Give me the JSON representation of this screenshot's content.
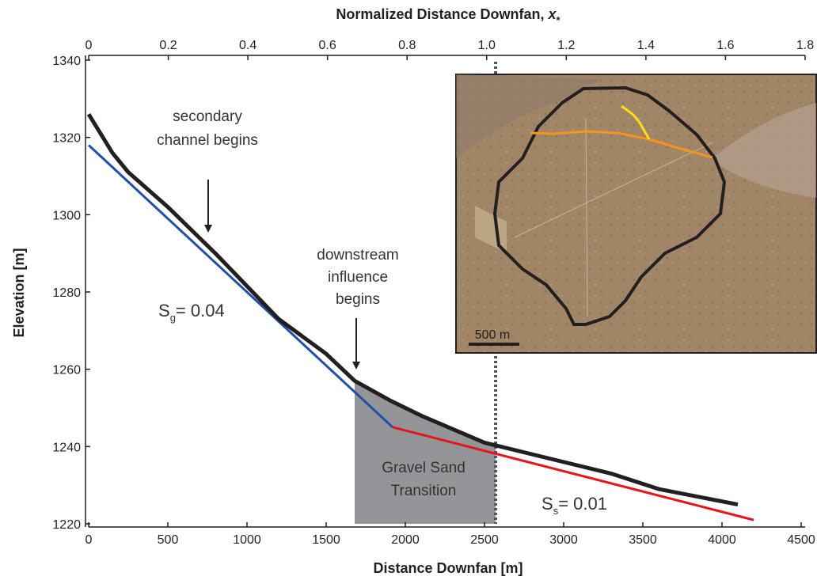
{
  "chart_data": {
    "type": "line",
    "top_axis_label": "Normalized Distance Downfan, ",
    "top_axis_var": "x",
    "top_axis_sub": "*",
    "x_label": "Distance Downfan [m]",
    "y_label": "Elevation [m]",
    "xlim": [
      0,
      4500
    ],
    "xticks": [
      0,
      500,
      1000,
      1500,
      2000,
      2500,
      3000,
      3500,
      4000,
      4500
    ],
    "top_xlim": [
      0,
      1.8
    ],
    "top_xticks": [
      0,
      0.2,
      0.4,
      0.6,
      0.8,
      {
        "value": 1,
        "label": "1.0"
      },
      1.2,
      1.4,
      1.6,
      1.8
    ],
    "ylim": [
      1220,
      1340
    ],
    "yticks": [
      1220,
      1240,
      1260,
      1280,
      1300,
      1320,
      1340
    ],
    "series": [
      {
        "color": "#231f20",
        "x": [
          0,
          150,
          250,
          500,
          800,
          1200,
          1500,
          1680,
          1900,
          2100,
          2500,
          2600,
          3000,
          3300,
          3600,
          4100
        ],
        "values": [
          1326,
          1316,
          1311,
          1302,
          1290,
          1273,
          1264,
          1257,
          1252,
          1248,
          1241,
          1240,
          1236,
          1233,
          1229,
          1225
        ]
      },
      {
        "color": "#1f4fa8",
        "x": [
          0,
          1920
        ],
        "values": [
          1318,
          1245
        ]
      },
      {
        "color": "#e8141b",
        "x": [
          1920,
          4200
        ],
        "values": [
          1245,
          1221
        ]
      }
    ],
    "transition_x": [
      1680,
      2570
    ],
    "transition_color": "#939598",
    "reference_line_x": 2570,
    "annotations": {
      "secondary": [
        "secondary",
        "channel begins"
      ],
      "downstream": [
        "downstream",
        "influence",
        "begins"
      ],
      "transition": [
        "Gravel Sand",
        "Transition"
      ],
      "slope_gravel": {
        "symbol": "S",
        "sub": "g",
        "text": "= 0.04"
      },
      "slope_sand": {
        "symbol": "S",
        "sub": "s",
        "text": "= 0.01"
      }
    },
    "inset": {
      "scale_label": "500 m"
    }
  }
}
